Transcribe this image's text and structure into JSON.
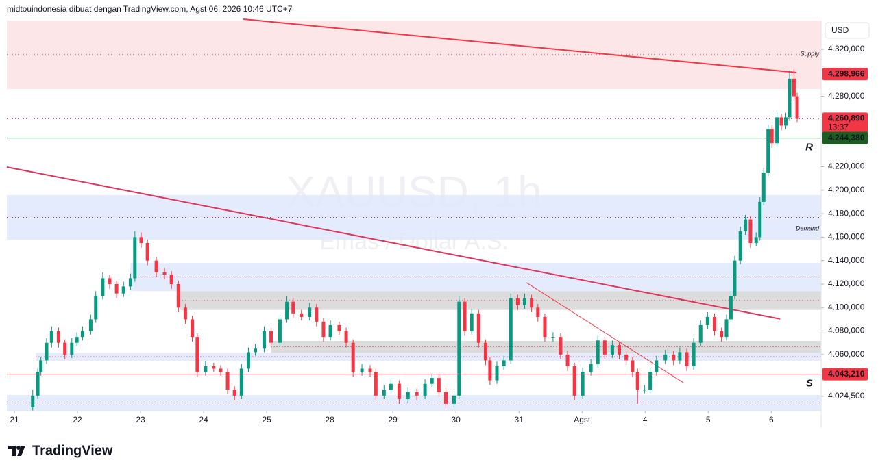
{
  "header": "midtouindonesia dibuat dengan TradingView.com, Agst 06, 2026 10:46 UTC+7",
  "footer": "TradingView",
  "chart_data": {
    "type": "candlestick",
    "watermark": "XAUUSD, 1h",
    "watermark_sub": "Emas / Dollar A.S.",
    "currency": "USD",
    "up_color": "#089981",
    "down_color": "#f23645",
    "grid": false,
    "xlim": [
      -0.12,
      12.79
    ],
    "xticks": [
      {
        "value": 0,
        "label": "21"
      },
      {
        "value": 1,
        "label": "22"
      },
      {
        "value": 2,
        "label": "23"
      },
      {
        "value": 3,
        "label": "24"
      },
      {
        "value": 4,
        "label": "25"
      },
      {
        "value": 5,
        "label": "28"
      },
      {
        "value": 6,
        "label": "29"
      },
      {
        "value": 7,
        "label": "30"
      },
      {
        "value": 8,
        "label": "31"
      },
      {
        "value": 9,
        "label": "Agst"
      },
      {
        "value": 10,
        "label": "4"
      },
      {
        "value": 11,
        "label": "5"
      },
      {
        "value": 12,
        "label": "6"
      }
    ],
    "ylim": [
      4012.1,
      4344.5
    ],
    "yticks": [
      {
        "value": 4320,
        "label": "4.320,000"
      },
      {
        "value": 4280,
        "label": "4.280,000"
      },
      {
        "value": 4220,
        "label": "4.220,000"
      },
      {
        "value": 4200,
        "label": "4.200,000"
      },
      {
        "value": 4180,
        "label": "4.180,000"
      },
      {
        "value": 4160,
        "label": "4.160,000"
      },
      {
        "value": 4140,
        "label": "4.140,000"
      },
      {
        "value": 4120,
        "label": "4.120,000"
      },
      {
        "value": 4100,
        "label": "4.100,000"
      },
      {
        "value": 4080,
        "label": "4.080,000"
      },
      {
        "value": 4060,
        "label": "4.060,000"
      },
      {
        "value": 4024.5,
        "label": "4.024,500"
      }
    ],
    "zones": [
      {
        "from": 4286.2,
        "to": 4344.5,
        "x_start": -0.12,
        "color": "#fde2e4",
        "label": "Supply",
        "label_color": "#f23645"
      },
      {
        "from": 4157.9,
        "to": 4195.8,
        "x_start": -0.12,
        "color": "#dfe7fc",
        "label": "Demand",
        "label_color": "#2962ff"
      },
      {
        "from": 4114,
        "to": 4138,
        "x_start": 1.84,
        "color": "#dfe7fc"
      },
      {
        "from": 4098,
        "to": 4114,
        "x_start": 2.62,
        "color": "#d6d6d6"
      },
      {
        "from": 4054.7,
        "to": 4061.5,
        "x_start": 0.34,
        "color": "#dfe7fc"
      },
      {
        "from": 4061.5,
        "to": 4071.6,
        "x_start": 4.07,
        "color": "#d6d6d6"
      },
      {
        "from": 4012.1,
        "to": 4025.5,
        "x_start": -0.12,
        "color": "#dfe7fc"
      }
    ],
    "trendlines": [
      {
        "x": [
          3.63,
          12.4
        ],
        "y": [
          4345.7,
          4300.2
        ],
        "color": "#f23645",
        "width": 2
      },
      {
        "x": [
          -0.12,
          12.14
        ],
        "y": [
          4219.7,
          4090.3
        ],
        "color": "#e0345a",
        "width": 2
      },
      {
        "x": [
          8.12,
          10.62
        ],
        "y": [
          4121.2,
          4035.5
        ],
        "color": "#f23645",
        "width": 1
      }
    ],
    "levels": [
      {
        "value": 4298.966,
        "label": "4.298,966",
        "color": "#f23645",
        "line": "none"
      },
      {
        "value": 4260.89,
        "label": "4.260,890",
        "color": "#f23645",
        "line": "dotted",
        "countdown": "13:37"
      },
      {
        "value": 4244.38,
        "label": "4.244,380",
        "color": "#1b5e20",
        "line": "solid",
        "tag": "R"
      },
      {
        "value": 4043.21,
        "label": "4.043,210",
        "color": "#f23645",
        "line": "solid",
        "tag": "S"
      }
    ],
    "candles": [
      [
        0.29,
        4015,
        4030,
        4012,
        4025
      ],
      [
        0.37,
        4025,
        4048,
        4022,
        4045
      ],
      [
        0.42,
        4045,
        4058,
        4042,
        4055
      ],
      [
        0.51,
        4055,
        4074,
        4052,
        4070
      ],
      [
        0.59,
        4070,
        4084,
        4066,
        4080
      ],
      [
        0.7,
        4080,
        4083,
        4066,
        4070
      ],
      [
        0.8,
        4070,
        4073,
        4056,
        4060
      ],
      [
        0.91,
        4060,
        4074,
        4057,
        4070
      ],
      [
        0.99,
        4070,
        4079,
        4067,
        4075
      ],
      [
        1.08,
        4075,
        4084,
        4072,
        4080
      ],
      [
        1.21,
        4080,
        4094,
        4077,
        4090
      ],
      [
        1.29,
        4090,
        4114,
        4087,
        4110
      ],
      [
        1.4,
        4110,
        4130,
        4107,
        4125
      ],
      [
        1.51,
        4125,
        4128,
        4116,
        4120
      ],
      [
        1.62,
        4120,
        4123,
        4108,
        4112
      ],
      [
        1.73,
        4112,
        4122,
        4109,
        4118
      ],
      [
        1.84,
        4118,
        4129,
        4115,
        4125
      ],
      [
        1.91,
        4125,
        4165,
        4122,
        4160
      ],
      [
        2.01,
        4160,
        4164,
        4151,
        4155
      ],
      [
        2.11,
        4155,
        4158,
        4136,
        4140
      ],
      [
        2.25,
        4140,
        4143,
        4126,
        4130
      ],
      [
        2.38,
        4130,
        4134,
        4124,
        4128
      ],
      [
        2.49,
        4128,
        4131,
        4116,
        4120
      ],
      [
        2.6,
        4120,
        4123,
        4096,
        4100
      ],
      [
        2.71,
        4100,
        4103,
        4086,
        4090
      ],
      [
        2.82,
        4090,
        4093,
        4071,
        4075
      ],
      [
        2.9,
        4075,
        4078,
        4041,
        4045
      ],
      [
        3.03,
        4045,
        4054,
        4042,
        4050
      ],
      [
        3.16,
        4050,
        4053,
        4045,
        4048
      ],
      [
        3.27,
        4048,
        4051,
        4042,
        4045
      ],
      [
        3.38,
        4045,
        4048,
        4026,
        4030
      ],
      [
        3.49,
        4030,
        4033,
        4021,
        4025
      ],
      [
        3.6,
        4025,
        4052,
        4022,
        4048
      ],
      [
        3.71,
        4048,
        4066,
        4045,
        4062
      ],
      [
        3.82,
        4062,
        4069,
        4059,
        4065
      ],
      [
        3.96,
        4065,
        4084,
        4062,
        4080
      ],
      [
        4.07,
        4080,
        4083,
        4066,
        4070
      ],
      [
        4.21,
        4070,
        4094,
        4067,
        4090
      ],
      [
        4.32,
        4090,
        4110,
        4087,
        4105
      ],
      [
        4.42,
        4105,
        4108,
        4091,
        4095
      ],
      [
        4.55,
        4095,
        4098,
        4089,
        4092
      ],
      [
        4.68,
        4092,
        4104,
        4089,
        4100
      ],
      [
        4.79,
        4100,
        4103,
        4084,
        4088
      ],
      [
        4.9,
        4088,
        4091,
        4071,
        4075
      ],
      [
        5.01,
        4075,
        4089,
        4072,
        4085
      ],
      [
        5.15,
        4085,
        4088,
        4077,
        4080
      ],
      [
        5.26,
        4080,
        4083,
        4066,
        4070
      ],
      [
        5.37,
        4070,
        4073,
        4041,
        4045
      ],
      [
        5.51,
        4045,
        4052,
        4042,
        4048
      ],
      [
        5.64,
        4048,
        4051,
        4041,
        4045
      ],
      [
        5.73,
        4045,
        4048,
        4021,
        4025
      ],
      [
        5.86,
        4025,
        4034,
        4022,
        4030
      ],
      [
        5.97,
        4030,
        4039,
        4027,
        4035
      ],
      [
        6.1,
        4035,
        4038,
        4018,
        4022
      ],
      [
        6.24,
        4022,
        4032,
        4019,
        4028
      ],
      [
        6.38,
        4028,
        4031,
        4021,
        4025
      ],
      [
        6.51,
        4025,
        4039,
        4022,
        4035
      ],
      [
        6.62,
        4035,
        4044,
        4032,
        4040
      ],
      [
        6.73,
        4040,
        4043,
        4024,
        4028
      ],
      [
        6.84,
        4028,
        4031,
        4014,
        4018
      ],
      [
        6.97,
        4018,
        4029,
        4015,
        4025
      ],
      [
        7.05,
        4025,
        4110,
        4022,
        4105
      ],
      [
        7.14,
        4105,
        4108,
        4076,
        4080
      ],
      [
        7.25,
        4080,
        4099,
        4077,
        4095
      ],
      [
        7.36,
        4095,
        4098,
        4066,
        4070
      ],
      [
        7.47,
        4070,
        4073,
        4051,
        4055
      ],
      [
        7.54,
        4055,
        4058,
        4034,
        4038
      ],
      [
        7.65,
        4038,
        4054,
        4035,
        4050
      ],
      [
        7.76,
        4050,
        4059,
        4047,
        4055
      ],
      [
        7.87,
        4055,
        4112,
        4052,
        4108
      ],
      [
        7.98,
        4108,
        4111,
        4098,
        4102
      ],
      [
        8.09,
        4102,
        4112,
        4099,
        4108
      ],
      [
        8.2,
        4108,
        4111,
        4096,
        4100
      ],
      [
        8.3,
        4100,
        4103,
        4088,
        4092
      ],
      [
        8.41,
        4092,
        4095,
        4071,
        4075
      ],
      [
        8.54,
        4075,
        4079,
        4071,
        4075
      ],
      [
        8.66,
        4075,
        4078,
        4056,
        4060
      ],
      [
        8.77,
        4060,
        4063,
        4046,
        4050
      ],
      [
        8.88,
        4050,
        4053,
        4021,
        4025
      ],
      [
        9.01,
        4025,
        4049,
        4022,
        4045
      ],
      [
        9.14,
        4045,
        4056,
        4042,
        4052
      ],
      [
        9.25,
        4052,
        4076,
        4049,
        4072
      ],
      [
        9.36,
        4072,
        4075,
        4056,
        4060
      ],
      [
        9.48,
        4060,
        4072,
        4057,
        4068
      ],
      [
        9.59,
        4068,
        4071,
        4056,
        4060
      ],
      [
        9.7,
        4060,
        4063,
        4051,
        4055
      ],
      [
        9.8,
        4055,
        4058,
        4041,
        4045
      ],
      [
        9.88,
        4045,
        4048,
        4018,
        4030
      ],
      [
        9.99,
        4030,
        4034,
        4027,
        4030
      ],
      [
        10.08,
        4030,
        4049,
        4027,
        4045
      ],
      [
        10.18,
        4045,
        4059,
        4042,
        4055
      ],
      [
        10.32,
        4055,
        4064,
        4052,
        4060
      ],
      [
        10.45,
        4060,
        4063,
        4051,
        4055
      ],
      [
        10.55,
        4055,
        4066,
        4052,
        4062
      ],
      [
        10.66,
        4062,
        4065,
        4046,
        4050
      ],
      [
        10.77,
        4050,
        4074,
        4047,
        4070
      ],
      [
        10.88,
        4070,
        4089,
        4067,
        4085
      ],
      [
        10.99,
        4085,
        4096,
        4082,
        4092
      ],
      [
        11.1,
        4092,
        4095,
        4076,
        4080
      ],
      [
        11.21,
        4080,
        4083,
        4071,
        4075
      ],
      [
        11.29,
        4075,
        4094,
        4072,
        4090
      ],
      [
        11.36,
        4090,
        4114,
        4087,
        4110
      ],
      [
        11.42,
        4110,
        4144,
        4107,
        4140
      ],
      [
        11.51,
        4140,
        4169,
        4137,
        4165
      ],
      [
        11.59,
        4165,
        4179,
        4162,
        4175
      ],
      [
        11.67,
        4175,
        4178,
        4151,
        4155
      ],
      [
        11.76,
        4155,
        4164,
        4152,
        4160
      ],
      [
        11.82,
        4160,
        4194,
        4157,
        4190
      ],
      [
        11.88,
        4190,
        4219,
        4187,
        4215
      ],
      [
        11.95,
        4215,
        4256,
        4212,
        4252
      ],
      [
        12.01,
        4252,
        4255,
        4236,
        4240
      ],
      [
        12.09,
        4240,
        4266,
        4237,
        4262
      ],
      [
        12.16,
        4262,
        4265,
        4251,
        4255
      ],
      [
        12.23,
        4255,
        4266,
        4252,
        4262
      ],
      [
        12.29,
        4262,
        4302,
        4259,
        4295
      ],
      [
        12.36,
        4295,
        4303,
        4276,
        4280
      ],
      [
        12.41,
        4280,
        4283,
        4258,
        4260.89
      ]
    ]
  }
}
